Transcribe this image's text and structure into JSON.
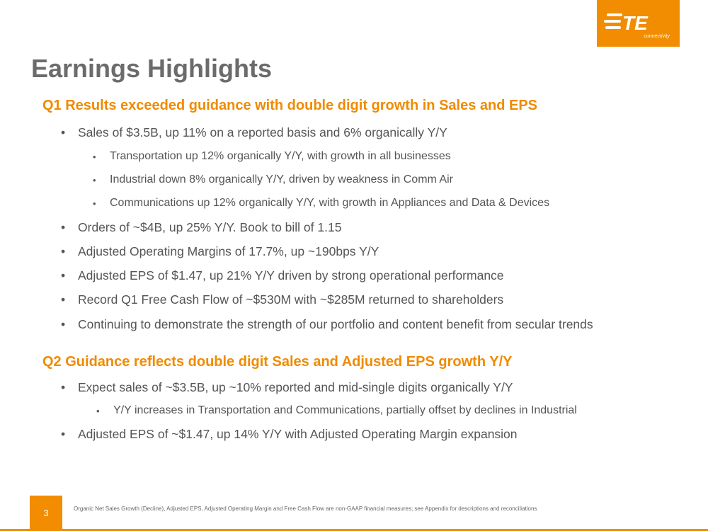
{
  "logo": {
    "mark": "TE",
    "tagline": "connectivity"
  },
  "title": "Earnings Highlights",
  "sections": [
    {
      "heading": "Q1 Results exceeded guidance with double digit growth in Sales and EPS",
      "items": [
        {
          "text": "Sales of $3.5B, up 11% on a reported basis and 6% organically Y/Y",
          "sub": [
            "Transportation up 12% organically Y/Y, with growth in all businesses",
            "Industrial down 8% organically Y/Y, driven by weakness in Comm Air",
            "Communications up 12% organically Y/Y, with growth in Appliances and Data & Devices"
          ]
        },
        {
          "text": "Orders of ~$4B, up 25% Y/Y. Book to bill of 1.15"
        },
        {
          "text": "Adjusted Operating Margins of 17.7%, up ~190bps Y/Y"
        },
        {
          "text": "Adjusted EPS of $1.47, up 21% Y/Y driven by strong operational performance"
        },
        {
          "text": "Record Q1 Free Cash Flow of ~$530M with ~$285M returned to shareholders"
        },
        {
          "text": "Continuing to demonstrate the strength of our portfolio and content benefit from secular trends"
        }
      ]
    },
    {
      "heading": "Q2 Guidance reflects double digit Sales and Adjusted EPS growth Y/Y",
      "items": [
        {
          "text": "Expect sales of ~$3.5B, up ~10% reported and mid-single digits organically Y/Y",
          "sub": [
            "Y/Y increases in Transportation and Communications, partially offset by declines in Industrial"
          ]
        },
        {
          "text": "Adjusted EPS of ~$1.47, up 14% Y/Y with Adjusted Operating Margin expansion"
        }
      ]
    }
  ],
  "footer": {
    "page_number": "3",
    "note": "Organic Net Sales Growth (Decline), Adjusted EPS, Adjusted Operating Margin and Free Cash Flow are non-GAAP financial measures; see Appendix for descriptions and reconciliations"
  }
}
